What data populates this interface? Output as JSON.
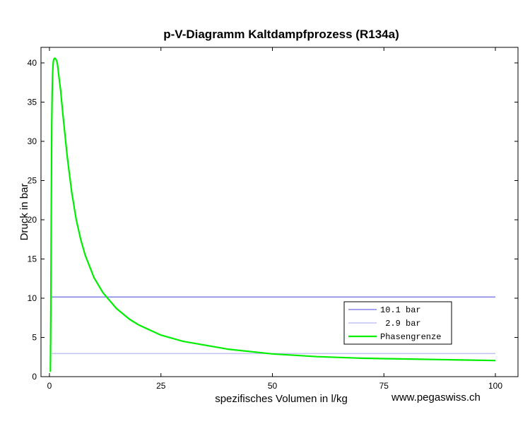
{
  "footer": {
    "watermark": "www.pegaswiss.ch"
  },
  "colors": {
    "line_101": "#8585e8",
    "line_29": "#c4c4f4",
    "phase": "#00ee00"
  },
  "chart_data": {
    "type": "line",
    "title": "p-V-Diagramm Kaltdampfprozess (R134a)",
    "xlabel": "spezifisches Volumen in l/kg",
    "ylabel": "Druck in bar",
    "xlim": [
      0,
      100
    ],
    "ylim": [
      0,
      42
    ],
    "xticks": [
      0,
      25,
      50,
      75,
      100
    ],
    "yticks": [
      0,
      5,
      10,
      15,
      20,
      25,
      30,
      35,
      40
    ],
    "grid": false,
    "legend": "bottom-right",
    "series": [
      {
        "name": "10.1 bar",
        "color": "#8585e8",
        "x": [
          0.5,
          100
        ],
        "y": [
          10.15,
          10.15
        ]
      },
      {
        "name": " 2.9 bar",
        "color": "#c4c4f4",
        "x": [
          0.5,
          100
        ],
        "y": [
          2.95,
          2.95
        ]
      },
      {
        "name": "Phasengrenze",
        "color": "#00ee00",
        "x": [
          0.2,
          0.3,
          0.4,
          0.5,
          0.6,
          0.7,
          0.8,
          0.9,
          1.0,
          1.2,
          1.4,
          1.6,
          1.8,
          2.0,
          2.5,
          3,
          4,
          5,
          6,
          7,
          8,
          10,
          12,
          15,
          18,
          20,
          25,
          30,
          40,
          50,
          60,
          70,
          75,
          80,
          90,
          100
        ],
        "y": [
          0.6,
          8,
          20,
          32,
          36,
          38.5,
          39.7,
          40.3,
          40.5,
          40.6,
          40.5,
          40.3,
          39.8,
          38.8,
          36.5,
          33.5,
          28,
          23.5,
          20,
          17.5,
          15.5,
          12.6,
          10.7,
          8.7,
          7.3,
          6.6,
          5.3,
          4.5,
          3.5,
          2.9,
          2.55,
          2.35,
          2.3,
          2.25,
          2.15,
          2.05
        ]
      }
    ]
  }
}
